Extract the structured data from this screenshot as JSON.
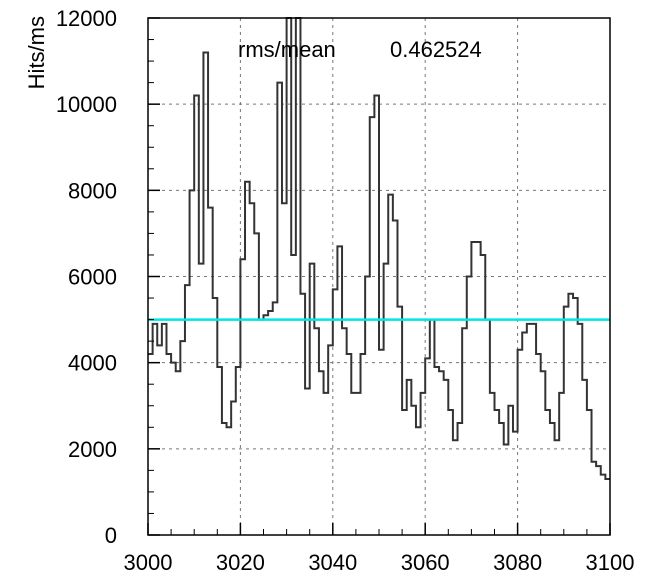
{
  "chart_data": {
    "type": "line",
    "style": "step-histogram",
    "title": "",
    "xlabel": "",
    "ylabel": "Hits/ms",
    "xlim": [
      3000,
      3100
    ],
    "ylim": [
      0,
      12000
    ],
    "grid": true,
    "x_ticks": [
      3000,
      3020,
      3040,
      3060,
      3080,
      3100
    ],
    "y_ticks": [
      0,
      2000,
      4000,
      6000,
      8000,
      10000,
      12000
    ],
    "x_tick_labels": [
      "3000",
      "3020",
      "3040",
      "3060",
      "3080",
      "3100"
    ],
    "y_tick_labels": [
      "0",
      "2000",
      "4000",
      "6000",
      "8000",
      "10000",
      "12000"
    ],
    "annotation": {
      "label": "rms/mean",
      "value": "0.462524"
    },
    "mean_line": {
      "y": 5000,
      "color": "#00e5e5"
    },
    "histogram_color": "#333333",
    "bin_width": 1,
    "series": [
      {
        "x": [
          3000,
          3001,
          3002,
          3003,
          3004,
          3005,
          3006,
          3007,
          3008,
          3009,
          3010,
          3011,
          3012,
          3013,
          3014,
          3015,
          3016,
          3017,
          3018,
          3019,
          3020,
          3021,
          3022,
          3023,
          3024,
          3025,
          3026,
          3027,
          3028,
          3029,
          3030,
          3031,
          3032,
          3033,
          3034,
          3035,
          3036,
          3037,
          3038,
          3039,
          3040,
          3041,
          3042,
          3043,
          3044,
          3045,
          3046,
          3047,
          3048,
          3049,
          3050,
          3051,
          3052,
          3053,
          3054,
          3055,
          3056,
          3057,
          3058,
          3059,
          3060,
          3061,
          3062,
          3063,
          3064,
          3065,
          3066,
          3067,
          3068,
          3069,
          3070,
          3071,
          3072,
          3073,
          3074,
          3075,
          3076,
          3077,
          3078,
          3079,
          3080,
          3081,
          3082,
          3083,
          3084,
          3085,
          3086,
          3087,
          3088,
          3089,
          3090,
          3091,
          3092,
          3093,
          3094,
          3095,
          3096,
          3097,
          3098,
          3099
        ],
        "values": [
          4200,
          4900,
          4400,
          4900,
          4200,
          4000,
          3800,
          4500,
          5800,
          8000,
          10200,
          6300,
          11200,
          7600,
          5500,
          3900,
          2600,
          2500,
          3100,
          3900,
          6400,
          8200,
          7700,
          7000,
          5000,
          5100,
          5200,
          5400,
          10500,
          7700,
          12000,
          6500,
          12000,
          5600,
          3400,
          6300,
          4800,
          3800,
          3300,
          4400,
          5700,
          6700,
          4800,
          4200,
          3300,
          3300,
          4200,
          6000,
          9700,
          10200,
          4300,
          6300,
          7900,
          7300,
          5300,
          2900,
          3600,
          3000,
          2500,
          3300,
          4100,
          5000,
          3900,
          3800,
          3600,
          2900,
          2200,
          2600,
          4800,
          6000,
          6800,
          6800,
          6500,
          5000,
          3300,
          2900,
          2600,
          2100,
          3000,
          2400,
          4300,
          4700,
          4900,
          4900,
          4200,
          3800,
          2900,
          2600,
          2200,
          3300,
          5300,
          5600,
          5500,
          4900,
          3600,
          2900,
          1700,
          1600,
          1400,
          1300
        ]
      }
    ]
  }
}
